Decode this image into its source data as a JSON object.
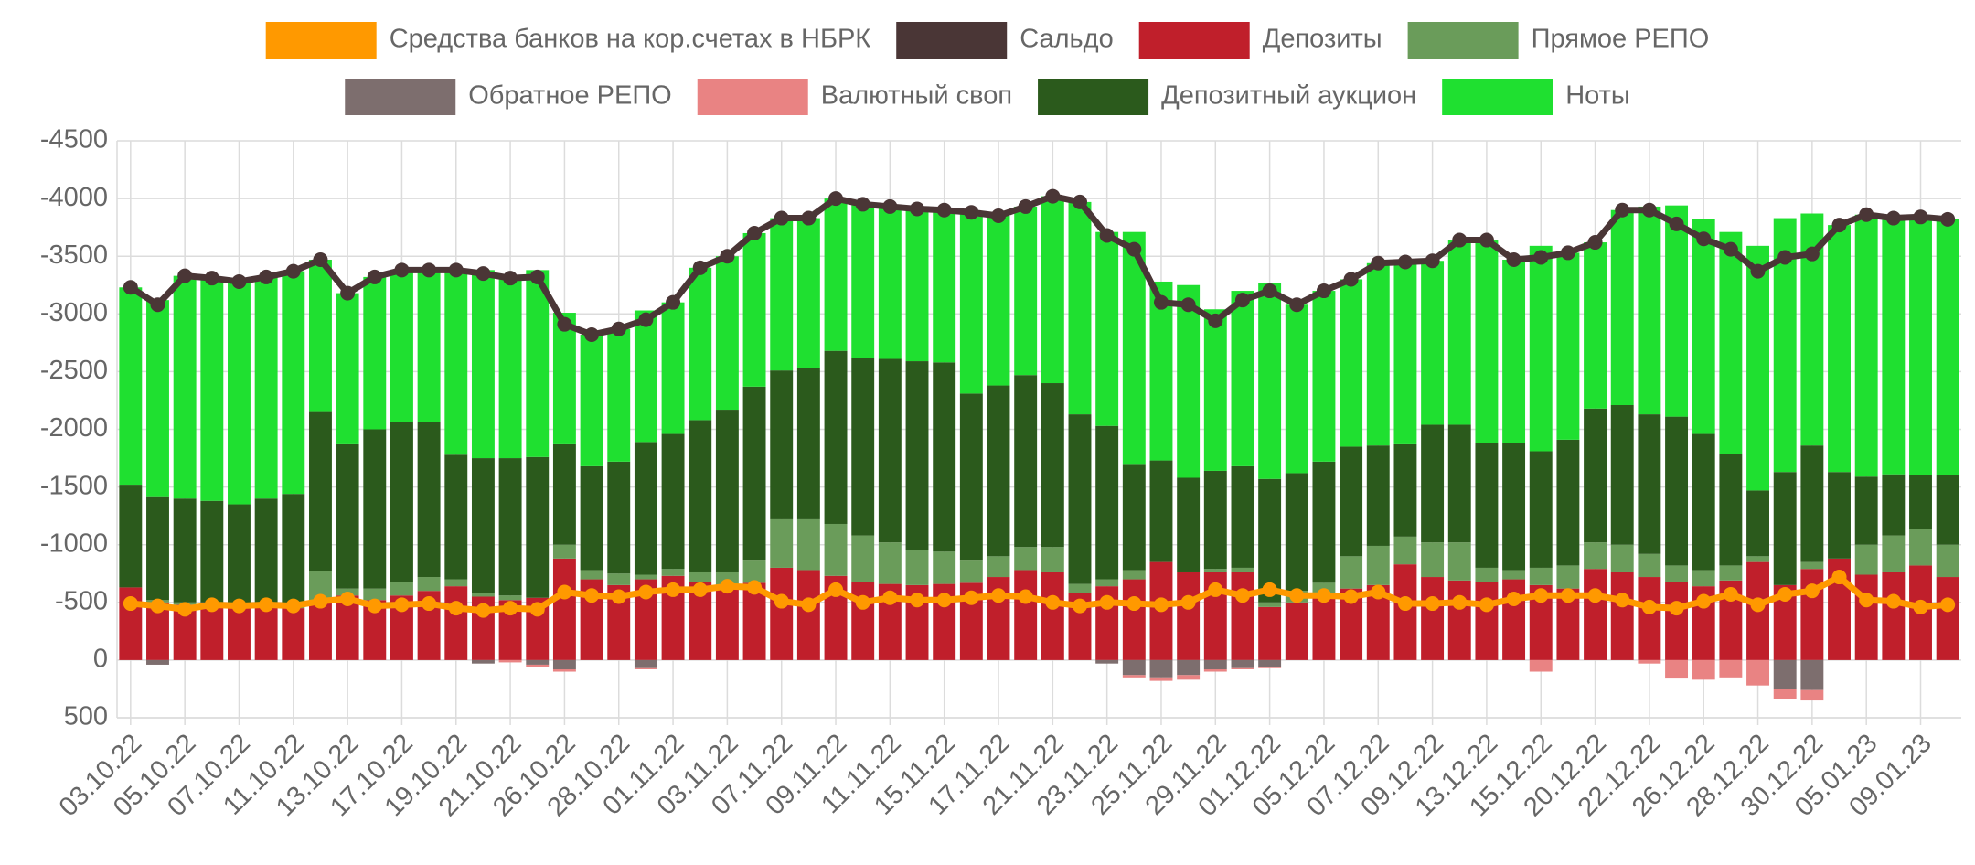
{
  "chart_data": {
    "type": "bar",
    "stacked": true,
    "y_inverted": true,
    "grid": true,
    "categories": [
      "03.10.22",
      null,
      "05.10.22",
      null,
      "07.10.22",
      null,
      "11.10.22",
      null,
      "13.10.22",
      null,
      "17.10.22",
      null,
      "19.10.22",
      null,
      "21.10.22",
      null,
      "26.10.22",
      null,
      "28.10.22",
      null,
      "01.11.22",
      null,
      "03.11.22",
      null,
      "07.11.22",
      null,
      "09.11.22",
      null,
      "11.11.22",
      null,
      "15.11.22",
      null,
      "17.11.22",
      null,
      "21.11.22",
      null,
      "23.11.22",
      null,
      "25.11.22",
      null,
      "29.11.22",
      null,
      "01.12.22",
      null,
      "05.12.22",
      null,
      "07.12.22",
      null,
      "09.12.22",
      null,
      "13.12.22",
      null,
      "15.12.22",
      null,
      "20.12.22",
      null,
      "22.12.22",
      null,
      "26.12.22",
      null,
      "28.12.22",
      null,
      "30.12.22",
      null,
      "05.01.23",
      null,
      "09.01.23",
      null
    ],
    "ylim": [
      -4500,
      500
    ],
    "yticks": [
      -4500,
      -4000,
      -3500,
      -3000,
      -2500,
      -2000,
      -1500,
      -1000,
      -500,
      0,
      500
    ],
    "series": [
      {
        "name": "Средства банков на кор.счетах в НБРК",
        "type": "line",
        "color": "#ff9900",
        "values": [
          -490,
          -470,
          -440,
          -480,
          -470,
          -480,
          -470,
          -510,
          -530,
          -470,
          -480,
          -490,
          -450,
          -430,
          -450,
          -440,
          -590,
          -560,
          -550,
          -590,
          -610,
          -610,
          -640,
          -630,
          -510,
          -480,
          -610,
          -500,
          -540,
          -520,
          -520,
          -540,
          -560,
          -550,
          -500,
          -470,
          -500,
          -490,
          -480,
          -500,
          -610,
          -560,
          -610,
          -560,
          -560,
          -550,
          -590,
          -490,
          -490,
          -500,
          -480,
          -530,
          -560,
          -560,
          -560,
          -520,
          -460,
          -450,
          -510,
          -570,
          -480,
          -570,
          -600,
          -720,
          -520,
          -510,
          -460,
          -480
        ]
      },
      {
        "name": "Сальдо",
        "type": "line",
        "color": "#4a3636",
        "values": [
          -3230,
          -3080,
          -3330,
          -3310,
          -3280,
          -3320,
          -3370,
          -3470,
          -3180,
          -3320,
          -3380,
          -3380,
          -3380,
          -3350,
          -3310,
          -3320,
          -2910,
          -2820,
          -2870,
          -2950,
          -3100,
          -3400,
          -3500,
          -3700,
          -3830,
          -3830,
          -4000,
          -3950,
          -3930,
          -3910,
          -3900,
          -3880,
          -3850,
          -3930,
          -4020,
          -3970,
          -3680,
          -3560,
          -3100,
          -3080,
          -2940,
          -3120,
          -3200,
          -3080,
          -3200,
          -3300,
          -3440,
          -3450,
          -3460,
          -3640,
          -3640,
          -3470,
          -3490,
          -3530,
          -3620,
          -3900,
          -3900,
          -3780,
          -3650,
          -3560,
          -3370,
          -3490,
          -3520,
          -3770,
          -3860,
          -3830,
          -3840,
          -3820
        ]
      },
      {
        "name": "Депозиты",
        "type": "bar",
        "color": "#c01f2b",
        "values": [
          -630,
          -500,
          -480,
          -500,
          -470,
          -480,
          -450,
          -520,
          -560,
          -520,
          -560,
          -600,
          -640,
          -550,
          -520,
          -540,
          -880,
          -700,
          -650,
          -700,
          -730,
          -680,
          -640,
          -670,
          -800,
          -780,
          -730,
          -680,
          -660,
          -650,
          -660,
          -670,
          -720,
          -780,
          -760,
          -580,
          -640,
          -700,
          -850,
          -760,
          -760,
          -760,
          -460,
          -500,
          -550,
          -620,
          -650,
          -830,
          -720,
          -690,
          -680,
          -700,
          -650,
          -620,
          -790,
          -760,
          -720,
          -680,
          -640,
          -690,
          -850,
          -650,
          -790,
          -880,
          -740,
          -760,
          -820,
          -720
        ]
      },
      {
        "name": "Прямое РЕПО",
        "type": "bar",
        "color": "#6a9c5a",
        "values": [
          0,
          -20,
          -20,
          0,
          -20,
          -20,
          -30,
          -250,
          -60,
          -100,
          -120,
          -120,
          -60,
          -30,
          -40,
          0,
          -120,
          -80,
          -100,
          -40,
          -60,
          -80,
          -120,
          -200,
          -420,
          -440,
          -450,
          -400,
          -360,
          -300,
          -280,
          -200,
          -180,
          -200,
          -220,
          -80,
          -60,
          -80,
          0,
          0,
          -30,
          -40,
          -40,
          -100,
          -120,
          -280,
          -340,
          -240,
          -300,
          -330,
          -120,
          -80,
          -150,
          -200,
          -230,
          -240,
          -200,
          -140,
          -140,
          -130,
          -50,
          0,
          -60,
          0,
          -260,
          -320,
          -320,
          -280
        ]
      },
      {
        "name": "Обратное РЕПО",
        "type": "bar",
        "color": "#7d6e6e",
        "values": [
          0,
          40,
          0,
          0,
          0,
          0,
          0,
          0,
          0,
          0,
          0,
          0,
          0,
          30,
          0,
          40,
          80,
          0,
          0,
          70,
          0,
          0,
          0,
          0,
          0,
          0,
          0,
          0,
          0,
          0,
          0,
          0,
          0,
          0,
          0,
          0,
          30,
          130,
          150,
          130,
          80,
          70,
          60,
          0,
          0,
          0,
          0,
          0,
          0,
          0,
          0,
          0,
          0,
          0,
          0,
          0,
          0,
          0,
          0,
          0,
          0,
          250,
          260,
          0,
          0,
          0,
          0,
          0
        ]
      },
      {
        "name": "Валютный своп",
        "type": "bar",
        "color": "#e98383",
        "values": [
          0,
          0,
          0,
          0,
          0,
          0,
          0,
          0,
          0,
          0,
          0,
          0,
          0,
          0,
          20,
          20,
          20,
          0,
          0,
          10,
          0,
          0,
          0,
          0,
          0,
          0,
          0,
          0,
          0,
          0,
          0,
          0,
          0,
          0,
          0,
          0,
          0,
          20,
          30,
          40,
          20,
          10,
          10,
          0,
          0,
          0,
          0,
          0,
          0,
          0,
          0,
          0,
          100,
          0,
          0,
          0,
          30,
          160,
          170,
          150,
          220,
          90,
          90,
          0,
          0,
          0,
          0,
          0
        ]
      },
      {
        "name": "Депозитный аукцион",
        "type": "bar",
        "color": "#2b5a1c",
        "values": [
          -890,
          -900,
          -900,
          -880,
          -860,
          -900,
          -960,
          -1380,
          -1250,
          -1380,
          -1380,
          -1340,
          -1080,
          -1170,
          -1190,
          -1220,
          -870,
          -900,
          -970,
          -1150,
          -1170,
          -1320,
          -1410,
          -1500,
          -1290,
          -1310,
          -1500,
          -1540,
          -1590,
          -1640,
          -1640,
          -1440,
          -1480,
          -1490,
          -1420,
          -1470,
          -1330,
          -920,
          -880,
          -820,
          -850,
          -880,
          -1070,
          -1020,
          -1050,
          -950,
          -870,
          -800,
          -1020,
          -1020,
          -1080,
          -1100,
          -1010,
          -1090,
          -1160,
          -1210,
          -1210,
          -1290,
          -1180,
          -970,
          -570,
          -980,
          -1010,
          -750,
          -590,
          -530,
          -460,
          -600
        ]
      },
      {
        "name": "Ноты",
        "type": "bar",
        "color": "#1fe030",
        "values": [
          -1710,
          -1700,
          -1930,
          -1930,
          -1930,
          -1920,
          -1930,
          -1320,
          -1310,
          -1320,
          -1320,
          -1320,
          -1600,
          -1630,
          -1580,
          -1620,
          -1140,
          -1140,
          -1150,
          -1140,
          -1140,
          -1320,
          -1330,
          -1330,
          -1320,
          -1300,
          -1320,
          -1330,
          -1320,
          -1320,
          -1320,
          -1570,
          -1470,
          -1460,
          -1620,
          -1840,
          -1680,
          -2010,
          -1550,
          -1670,
          -1400,
          -1520,
          -1700,
          -1460,
          -1480,
          -1450,
          -1580,
          -1580,
          -1420,
          -1600,
          -1760,
          -1590,
          -1780,
          -1620,
          -1440,
          -1690,
          -1800,
          -1830,
          -1860,
          -1920,
          -2120,
          -2200,
          -2010,
          -2140,
          -2270,
          -2220,
          -2240,
          -2220
        ]
      }
    ]
  }
}
